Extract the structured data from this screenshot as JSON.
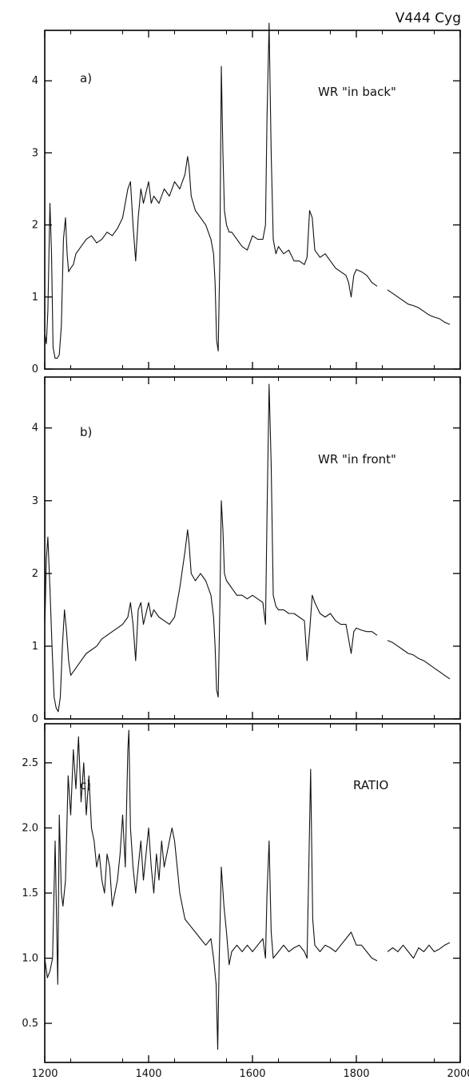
{
  "figure_title": "V444 Cyg",
  "chart_data": [
    {
      "type": "line",
      "panel_label": "a)",
      "annotation": "WR \"in back\"",
      "xlim": [
        1200,
        2000
      ],
      "ylim": [
        0,
        4.7
      ],
      "x_ticks": [
        1200,
        1400,
        1600,
        1800,
        2000
      ],
      "y_ticks": [
        0,
        1,
        2,
        3,
        4
      ],
      "y_tick_labels": [
        "0",
        "1",
        "2",
        "3",
        "4"
      ],
      "series": [
        {
          "x": [
            1200,
            1203,
            1206,
            1210,
            1213,
            1216,
            1220,
            1224,
            1228,
            1232,
            1236,
            1240,
            1243,
            1246,
            1250,
            1255,
            1260,
            1270,
            1280,
            1290,
            1300,
            1310,
            1320,
            1330,
            1340,
            1350,
            1360,
            1365,
            1370,
            1375,
            1380,
            1385,
            1390,
            1400,
            1405,
            1410,
            1420,
            1430,
            1440,
            1450,
            1460,
            1470,
            1475,
            1478,
            1482,
            1490,
            1500,
            1510,
            1520,
            1525,
            1528,
            1531,
            1534,
            1537,
            1540,
            1543,
            1546,
            1550,
            1555,
            1560,
            1570,
            1580,
            1590,
            1600,
            1610,
            1620,
            1625,
            1628,
            1632,
            1636,
            1640,
            1645,
            1650,
            1660,
            1670,
            1680,
            1690,
            1700,
            1705,
            1710,
            1715,
            1720,
            1730,
            1740,
            1750,
            1760,
            1770,
            1780,
            1785,
            1790,
            1795,
            1800,
            1810,
            1820,
            1830,
            1840
          ],
          "y": [
            0.5,
            0.35,
            0.8,
            2.3,
            1.6,
            0.3,
            0.15,
            0.15,
            0.2,
            0.6,
            1.8,
            2.1,
            1.6,
            1.35,
            1.4,
            1.45,
            1.6,
            1.7,
            1.8,
            1.85,
            1.75,
            1.8,
            1.9,
            1.85,
            1.95,
            2.1,
            2.5,
            2.6,
            2.0,
            1.5,
            2.1,
            2.5,
            2.3,
            2.6,
            2.3,
            2.4,
            2.3,
            2.5,
            2.4,
            2.6,
            2.5,
            2.7,
            2.95,
            2.8,
            2.4,
            2.2,
            2.1,
            2.0,
            1.8,
            1.6,
            1.2,
            0.4,
            0.25,
            1.5,
            4.2,
            3.0,
            2.2,
            2.0,
            1.9,
            1.9,
            1.8,
            1.7,
            1.65,
            1.85,
            1.8,
            1.8,
            2.0,
            3.5,
            4.8,
            3.0,
            1.8,
            1.6,
            1.7,
            1.6,
            1.65,
            1.5,
            1.5,
            1.45,
            1.55,
            2.2,
            2.1,
            1.65,
            1.55,
            1.6,
            1.5,
            1.4,
            1.35,
            1.3,
            1.2,
            1.0,
            1.3,
            1.38,
            1.35,
            1.3,
            1.2,
            1.15
          ]
        },
        {
          "x": [
            1860,
            1870,
            1880,
            1890,
            1900,
            1910,
            1920,
            1930,
            1940,
            1950,
            1960,
            1970,
            1980
          ],
          "y": [
            1.1,
            1.05,
            1.0,
            0.95,
            0.9,
            0.88,
            0.85,
            0.8,
            0.75,
            0.72,
            0.7,
            0.65,
            0.62
          ]
        }
      ]
    },
    {
      "type": "line",
      "panel_label": "b)",
      "annotation": "WR \"in front\"",
      "xlim": [
        1200,
        2000
      ],
      "ylim": [
        0,
        4.7
      ],
      "x_ticks": [
        1200,
        1400,
        1600,
        1800,
        2000
      ],
      "y_ticks": [
        0,
        1,
        2,
        3,
        4
      ],
      "y_tick_labels": [
        "0",
        "1",
        "2",
        "3",
        "4"
      ],
      "series": [
        {
          "x": [
            1200,
            1203,
            1206,
            1210,
            1214,
            1218,
            1222,
            1226,
            1230,
            1234,
            1238,
            1242,
            1246,
            1250,
            1255,
            1260,
            1270,
            1280,
            1290,
            1300,
            1310,
            1320,
            1330,
            1340,
            1350,
            1360,
            1365,
            1370,
            1375,
            1380,
            1385,
            1390,
            1400,
            1405,
            1410,
            1420,
            1430,
            1440,
            1450,
            1460,
            1470,
            1475,
            1478,
            1482,
            1490,
            1500,
            1510,
            1520,
            1525,
            1528,
            1531,
            1534,
            1537,
            1540,
            1543,
            1546,
            1550,
            1555,
            1560,
            1570,
            1580,
            1590,
            1600,
            1610,
            1620,
            1625,
            1628,
            1632,
            1636,
            1640,
            1645,
            1650,
            1660,
            1670,
            1680,
            1690,
            1700,
            1705,
            1710,
            1715,
            1720,
            1730,
            1740,
            1750,
            1760,
            1770,
            1780,
            1785,
            1790,
            1795,
            1800,
            1810,
            1820,
            1830,
            1840
          ],
          "y": [
            1.2,
            2.2,
            2.5,
            1.8,
            1.0,
            0.3,
            0.15,
            0.1,
            0.3,
            1.0,
            1.5,
            1.2,
            0.8,
            0.6,
            0.65,
            0.7,
            0.8,
            0.9,
            0.95,
            1.0,
            1.1,
            1.15,
            1.2,
            1.25,
            1.3,
            1.4,
            1.6,
            1.3,
            0.8,
            1.5,
            1.6,
            1.3,
            1.6,
            1.4,
            1.5,
            1.4,
            1.35,
            1.3,
            1.4,
            1.8,
            2.3,
            2.6,
            2.4,
            2.0,
            1.9,
            2.0,
            1.9,
            1.7,
            1.4,
            1.0,
            0.4,
            0.3,
            1.5,
            3.0,
            2.6,
            2.0,
            1.9,
            1.85,
            1.8,
            1.7,
            1.7,
            1.65,
            1.7,
            1.65,
            1.6,
            1.3,
            2.8,
            4.6,
            3.5,
            1.7,
            1.55,
            1.5,
            1.5,
            1.45,
            1.45,
            1.4,
            1.35,
            0.8,
            1.2,
            1.7,
            1.6,
            1.45,
            1.4,
            1.45,
            1.35,
            1.3,
            1.3,
            1.1,
            0.9,
            1.2,
            1.25,
            1.22,
            1.2,
            1.2,
            1.15
          ]
        },
        {
          "x": [
            1860,
            1870,
            1880,
            1890,
            1900,
            1910,
            1920,
            1930,
            1940,
            1950,
            1960,
            1970,
            1980
          ],
          "y": [
            1.08,
            1.05,
            1.0,
            0.95,
            0.9,
            0.88,
            0.83,
            0.8,
            0.75,
            0.7,
            0.65,
            0.6,
            0.55
          ]
        }
      ]
    },
    {
      "type": "line",
      "panel_label": "c)",
      "annotation": "RATIO",
      "xlim": [
        1200,
        2000
      ],
      "ylim": [
        0.2,
        2.8
      ],
      "x_ticks": [
        1200,
        1400,
        1600,
        1800,
        2000
      ],
      "x_tick_labels": [
        "1200",
        "1400",
        "1600",
        "1800",
        "2000"
      ],
      "y_ticks": [
        0.5,
        1.0,
        1.5,
        2.0,
        2.5
      ],
      "y_tick_labels": [
        "0.5",
        "1.0",
        "1.5",
        "2.0",
        "2.5"
      ],
      "series": [
        {
          "x": [
            1200,
            1205,
            1210,
            1215,
            1220,
            1225,
            1228,
            1232,
            1235,
            1240,
            1245,
            1250,
            1255,
            1260,
            1265,
            1270,
            1275,
            1280,
            1285,
            1290,
            1295,
            1300,
            1305,
            1310,
            1315,
            1320,
            1325,
            1330,
            1335,
            1340,
            1345,
            1350,
            1355,
            1360,
            1362,
            1365,
            1370,
            1375,
            1380,
            1385,
            1390,
            1395,
            1400,
            1405,
            1410,
            1415,
            1420,
            1425,
            1430,
            1435,
            1440,
            1445,
            1450,
            1455,
            1460,
            1470,
            1480,
            1490,
            1500,
            1510,
            1520,
            1525,
            1530,
            1533,
            1536,
            1540,
            1545,
            1550,
            1555,
            1560,
            1570,
            1580,
            1590,
            1600,
            1610,
            1620,
            1625,
            1628,
            1632,
            1636,
            1640,
            1650,
            1660,
            1670,
            1680,
            1690,
            1700,
            1705,
            1708,
            1712,
            1716,
            1720,
            1730,
            1740,
            1750,
            1760,
            1770,
            1780,
            1790,
            1800,
            1810,
            1820,
            1830,
            1840
          ],
          "y": [
            1.0,
            0.85,
            0.9,
            1.0,
            1.9,
            0.8,
            2.1,
            1.5,
            1.4,
            1.6,
            2.4,
            2.1,
            2.6,
            2.3,
            2.7,
            2.2,
            2.5,
            2.1,
            2.4,
            2.0,
            1.9,
            1.7,
            1.8,
            1.6,
            1.5,
            1.8,
            1.7,
            1.4,
            1.5,
            1.6,
            1.8,
            2.1,
            1.7,
            2.6,
            2.75,
            2.0,
            1.7,
            1.5,
            1.7,
            1.9,
            1.6,
            1.8,
            2.0,
            1.7,
            1.5,
            1.8,
            1.6,
            1.9,
            1.7,
            1.8,
            1.9,
            2.0,
            1.9,
            1.7,
            1.5,
            1.3,
            1.25,
            1.2,
            1.15,
            1.1,
            1.15,
            1.0,
            0.8,
            0.3,
            1.0,
            1.7,
            1.4,
            1.2,
            0.95,
            1.05,
            1.1,
            1.05,
            1.1,
            1.05,
            1.1,
            1.15,
            1.0,
            1.5,
            1.9,
            1.2,
            1.0,
            1.05,
            1.1,
            1.05,
            1.08,
            1.1,
            1.05,
            1.0,
            1.6,
            2.45,
            1.3,
            1.1,
            1.05,
            1.1,
            1.08,
            1.05,
            1.1,
            1.15,
            1.2,
            1.1,
            1.1,
            1.05,
            1.0,
            0.98
          ]
        },
        {
          "x": [
            1860,
            1870,
            1880,
            1890,
            1900,
            1910,
            1920,
            1930,
            1940,
            1950,
            1960,
            1970,
            1980
          ],
          "y": [
            1.05,
            1.08,
            1.05,
            1.1,
            1.05,
            1.0,
            1.08,
            1.05,
            1.1,
            1.05,
            1.07,
            1.1,
            1.12
          ]
        }
      ]
    }
  ]
}
